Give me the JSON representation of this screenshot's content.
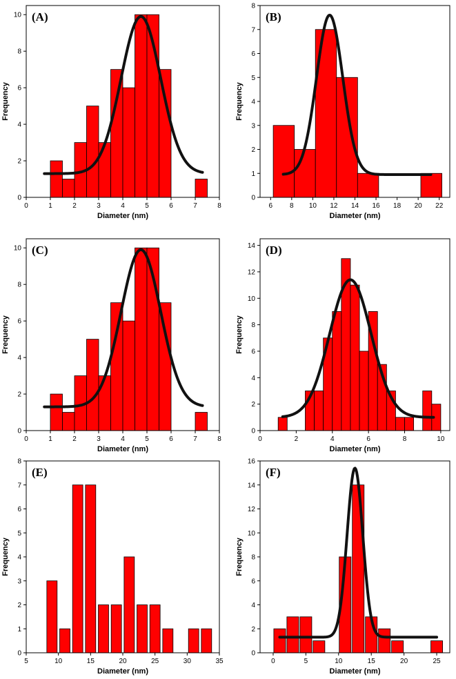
{
  "figure_title": "",
  "chart_data": [
    {
      "panel_label": "(A)",
      "type": "bar",
      "xlabel": "Diameter (nm)",
      "ylabel": "Frequency",
      "xlim": [
        0,
        8
      ],
      "ylim": [
        0,
        10.5
      ],
      "xticks": [
        0,
        1,
        2,
        3,
        4,
        5,
        6,
        7,
        8
      ],
      "yticks": [
        0,
        2,
        4,
        6,
        8,
        10
      ],
      "bar_width": 0.5,
      "bars": [
        {
          "x": 1.25,
          "value": 2
        },
        {
          "x": 1.75,
          "value": 1
        },
        {
          "x": 2.25,
          "value": 3
        },
        {
          "x": 2.75,
          "value": 5
        },
        {
          "x": 3.25,
          "value": 3
        },
        {
          "x": 3.75,
          "value": 7
        },
        {
          "x": 4.25,
          "value": 6
        },
        {
          "x": 4.75,
          "value": 10
        },
        {
          "x": 5.25,
          "value": 10
        },
        {
          "x": 5.75,
          "value": 7
        },
        {
          "x": 7.25,
          "value": 1
        }
      ],
      "fit": {
        "type": "gaussian",
        "y0": 1.3,
        "amplitude": 8.6,
        "center": 4.75,
        "sigma": 0.82,
        "x_range": [
          0.75,
          7.3
        ]
      }
    },
    {
      "panel_label": "(B)",
      "type": "bar",
      "xlabel": "Diameter (nm)",
      "ylabel": "Frequency",
      "xlim": [
        5,
        23
      ],
      "ylim": [
        0,
        8
      ],
      "xticks": [
        6,
        8,
        10,
        12,
        14,
        16,
        18,
        20,
        22
      ],
      "yticks": [
        0,
        1,
        2,
        3,
        4,
        5,
        6,
        7,
        8
      ],
      "bar_width": 2,
      "bars": [
        {
          "x": 7.25,
          "value": 3
        },
        {
          "x": 9.25,
          "value": 2
        },
        {
          "x": 11.25,
          "value": 7
        },
        {
          "x": 13.25,
          "value": 5
        },
        {
          "x": 15.25,
          "value": 1
        },
        {
          "x": 21.25,
          "value": 1
        }
      ],
      "fit": {
        "type": "gaussian",
        "y0": 0.95,
        "amplitude": 6.65,
        "center": 11.6,
        "sigma": 1.25,
        "x_range": [
          7.2,
          21.2
        ]
      }
    },
    {
      "panel_label": "(C)",
      "type": "bar",
      "xlabel": "Diameter (nm)",
      "ylabel": "Frequency",
      "xlim": [
        0,
        8
      ],
      "ylim": [
        0,
        10.5
      ],
      "xticks": [
        0,
        1,
        2,
        3,
        4,
        5,
        6,
        7,
        8
      ],
      "yticks": [
        0,
        2,
        4,
        6,
        8,
        10
      ],
      "bar_width": 0.5,
      "bars": [
        {
          "x": 1.25,
          "value": 2
        },
        {
          "x": 1.75,
          "value": 1
        },
        {
          "x": 2.25,
          "value": 3
        },
        {
          "x": 2.75,
          "value": 5
        },
        {
          "x": 3.25,
          "value": 3
        },
        {
          "x": 3.75,
          "value": 7
        },
        {
          "x": 4.25,
          "value": 6
        },
        {
          "x": 4.75,
          "value": 10
        },
        {
          "x": 5.25,
          "value": 10
        },
        {
          "x": 5.75,
          "value": 7
        },
        {
          "x": 7.25,
          "value": 1
        }
      ],
      "fit": {
        "type": "gaussian",
        "y0": 1.3,
        "amplitude": 8.6,
        "center": 4.75,
        "sigma": 0.82,
        "x_range": [
          0.75,
          7.3
        ]
      }
    },
    {
      "panel_label": "(D)",
      "type": "bar",
      "xlabel": "Diameter (nm)",
      "ylabel": "Frequency",
      "xlim": [
        0,
        10.5
      ],
      "ylim": [
        0,
        14.5
      ],
      "xticks": [
        0,
        2,
        4,
        6,
        8,
        10
      ],
      "yticks": [
        0,
        2,
        4,
        6,
        8,
        10,
        12,
        14
      ],
      "bar_width": 0.5,
      "bars": [
        {
          "x": 1.25,
          "value": 1
        },
        {
          "x": 2.75,
          "value": 3
        },
        {
          "x": 3.25,
          "value": 3
        },
        {
          "x": 3.75,
          "value": 7
        },
        {
          "x": 4.25,
          "value": 9
        },
        {
          "x": 4.75,
          "value": 13
        },
        {
          "x": 5.25,
          "value": 11
        },
        {
          "x": 5.75,
          "value": 6
        },
        {
          "x": 6.25,
          "value": 9
        },
        {
          "x": 6.75,
          "value": 5
        },
        {
          "x": 7.25,
          "value": 3
        },
        {
          "x": 7.75,
          "value": 1
        },
        {
          "x": 8.25,
          "value": 1
        },
        {
          "x": 9.25,
          "value": 3
        },
        {
          "x": 9.75,
          "value": 2
        }
      ],
      "fit": {
        "type": "gaussian",
        "y0": 1.0,
        "amplitude": 10.4,
        "center": 5.0,
        "sigma": 1.15,
        "x_range": [
          1.25,
          9.6
        ]
      }
    },
    {
      "panel_label": "(E)",
      "type": "bar",
      "xlabel": "Diameter (nm)",
      "ylabel": "Frequency",
      "xlim": [
        5,
        35
      ],
      "ylim": [
        0,
        8
      ],
      "xticks": [
        5,
        10,
        15,
        20,
        25,
        30,
        35
      ],
      "yticks": [
        0,
        1,
        2,
        3,
        4,
        5,
        6,
        7,
        8
      ],
      "bar_width": 1.6,
      "bars": [
        {
          "x": 9,
          "value": 3
        },
        {
          "x": 11,
          "value": 1
        },
        {
          "x": 13,
          "value": 7
        },
        {
          "x": 15,
          "value": 7
        },
        {
          "x": 17,
          "value": 2
        },
        {
          "x": 19,
          "value": 2
        },
        {
          "x": 21,
          "value": 4
        },
        {
          "x": 23,
          "value": 2
        },
        {
          "x": 25,
          "value": 2
        },
        {
          "x": 27,
          "value": 1
        },
        {
          "x": 31,
          "value": 1
        },
        {
          "x": 33,
          "value": 1
        }
      ],
      "fit": null
    },
    {
      "panel_label": "(F)",
      "type": "bar",
      "xlabel": "Diameter (nm)",
      "ylabel": "Frequency",
      "xlim": [
        -2,
        27
      ],
      "ylim": [
        0,
        16
      ],
      "xticks": [
        0,
        5,
        10,
        15,
        20,
        25
      ],
      "yticks": [
        0,
        2,
        4,
        6,
        8,
        10,
        12,
        14,
        16
      ],
      "bar_width": 1.8,
      "bars": [
        {
          "x": 1,
          "value": 2
        },
        {
          "x": 3,
          "value": 3
        },
        {
          "x": 5,
          "value": 3
        },
        {
          "x": 7,
          "value": 1
        },
        {
          "x": 11,
          "value": 8
        },
        {
          "x": 13,
          "value": 14
        },
        {
          "x": 15,
          "value": 3
        },
        {
          "x": 17,
          "value": 2
        },
        {
          "x": 19,
          "value": 1
        },
        {
          "x": 25,
          "value": 1
        }
      ],
      "fit": {
        "type": "gaussian",
        "y0": 1.3,
        "amplitude": 14.1,
        "center": 12.5,
        "sigma": 1.2,
        "x_range": [
          1,
          25
        ]
      }
    }
  ]
}
